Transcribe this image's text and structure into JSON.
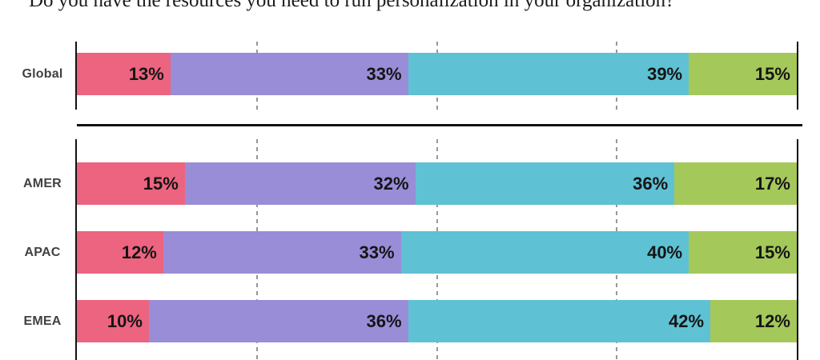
{
  "title": "Do you have the resources you need to run personalization in your organization?",
  "colors": {
    "pink": "#EC6480",
    "purple": "#998DD8",
    "teal": "#5FC1D4",
    "green": "#A4C85A",
    "axis": "#121212",
    "gridline": "#979797",
    "percent_text": "#151515",
    "category_text": "#414141"
  },
  "chart_data": {
    "type": "bar",
    "variant": "horizontal-stacked",
    "unit": "%",
    "title": "Do you have the resources you need to run personalization in your organization?",
    "categories": [
      "Global",
      "AMER",
      "APAC",
      "EMEA"
    ],
    "series": [
      {
        "name": "pink-segment",
        "color": "#EC6480",
        "values": [
          13,
          15,
          12,
          10
        ]
      },
      {
        "name": "purple-segment",
        "color": "#998DD8",
        "values": [
          33,
          32,
          33,
          36
        ]
      },
      {
        "name": "teal-segment",
        "color": "#5FC1D4",
        "values": [
          39,
          36,
          40,
          42
        ]
      },
      {
        "name": "green-segment",
        "color": "#A4C85A",
        "values": [
          15,
          17,
          15,
          12
        ]
      }
    ],
    "row_groups": [
      [
        "Global"
      ],
      [
        "AMER",
        "APAC",
        "EMEA"
      ]
    ],
    "xlim": [
      0,
      100
    ],
    "gridlines_percent": [
      25,
      50,
      75
    ],
    "axis_lines_percent": [
      0,
      100
    ],
    "legend": null,
    "data_labels": "inside-right"
  }
}
